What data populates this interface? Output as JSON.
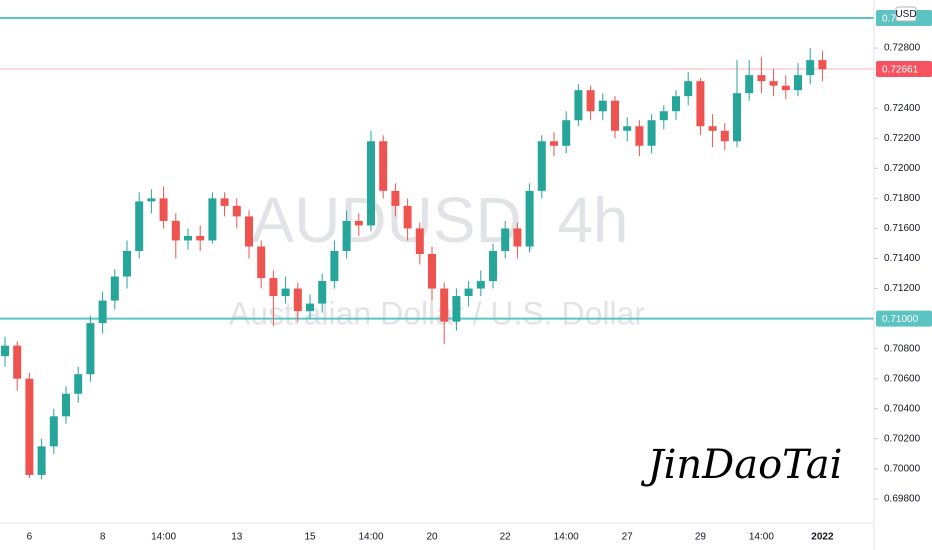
{
  "chart_data": {
    "type": "candlestick",
    "title": "AUDUSD, 4h",
    "subtitle": "Australian Dollar / U.S. Dollar",
    "annotation": "JinDaoTai",
    "currency": "USD",
    "up_color": "#26a69a",
    "down_color": "#ef5350",
    "level_color": "#5cc3c3",
    "price_color": "#f7525f",
    "grid": false,
    "ylim": [
      0.6964,
      0.7312
    ],
    "yticks": [
      {
        "value": 0.698,
        "label": "0.69800"
      },
      {
        "value": 0.7,
        "label": "0.70000"
      },
      {
        "value": 0.702,
        "label": "0.70200"
      },
      {
        "value": 0.704,
        "label": "0.70400"
      },
      {
        "value": 0.706,
        "label": "0.70600"
      },
      {
        "value": 0.708,
        "label": "0.70800"
      },
      {
        "value": 0.712,
        "label": "0.71200"
      },
      {
        "value": 0.714,
        "label": "0.71400"
      },
      {
        "value": 0.716,
        "label": "0.71600"
      },
      {
        "value": 0.718,
        "label": "0.71800"
      },
      {
        "value": 0.72,
        "label": "0.72000"
      },
      {
        "value": 0.722,
        "label": "0.72200"
      },
      {
        "value": 0.724,
        "label": "0.72400"
      },
      {
        "value": 0.728,
        "label": "0.72800"
      }
    ],
    "levels": [
      {
        "value": 0.73,
        "label": "0.7"
      },
      {
        "value": 0.71,
        "label": "0.71000"
      }
    ],
    "last_price": {
      "value": 0.72661,
      "label": "0.72661"
    },
    "categories": [
      null,
      null,
      "6",
      null,
      null,
      null,
      null,
      null,
      "8",
      null,
      null,
      null,
      null,
      "14:00",
      null,
      null,
      null,
      null,
      null,
      "13",
      null,
      null,
      null,
      null,
      null,
      "15",
      null,
      null,
      null,
      null,
      "14:00",
      null,
      null,
      null,
      null,
      "20",
      null,
      null,
      null,
      null,
      null,
      "22",
      null,
      null,
      null,
      null,
      "14:00",
      null,
      null,
      null,
      null,
      "27",
      null,
      null,
      null,
      null,
      null,
      "29",
      null,
      null,
      null,
      null,
      "14:00",
      null,
      null,
      null,
      null,
      "2022"
    ],
    "ohlc": [
      [
        0.7075,
        0.7088,
        0.7068,
        0.7082
      ],
      [
        0.7082,
        0.7085,
        0.7052,
        0.706
      ],
      [
        0.706,
        0.7064,
        0.6994,
        0.6996
      ],
      [
        0.6996,
        0.702,
        0.6993,
        0.7015
      ],
      [
        0.7015,
        0.704,
        0.701,
        0.7035
      ],
      [
        0.7035,
        0.7055,
        0.703,
        0.705
      ],
      [
        0.705,
        0.7068,
        0.7044,
        0.7063
      ],
      [
        0.7063,
        0.7102,
        0.7058,
        0.7097
      ],
      [
        0.7097,
        0.7118,
        0.709,
        0.7112
      ],
      [
        0.7112,
        0.7133,
        0.7106,
        0.7128
      ],
      [
        0.7128,
        0.7152,
        0.712,
        0.7145
      ],
      [
        0.7145,
        0.7184,
        0.714,
        0.7178
      ],
      [
        0.7178,
        0.7186,
        0.717,
        0.718
      ],
      [
        0.718,
        0.7188,
        0.716,
        0.7165
      ],
      [
        0.7165,
        0.717,
        0.714,
        0.7152
      ],
      [
        0.7152,
        0.716,
        0.7146,
        0.7155
      ],
      [
        0.7155,
        0.7162,
        0.7145,
        0.7152
      ],
      [
        0.7152,
        0.7184,
        0.715,
        0.718
      ],
      [
        0.718,
        0.7184,
        0.7168,
        0.7175
      ],
      [
        0.7175,
        0.718,
        0.716,
        0.7168
      ],
      [
        0.7168,
        0.7172,
        0.714,
        0.7148
      ],
      [
        0.7148,
        0.7152,
        0.712,
        0.7127
      ],
      [
        0.7127,
        0.7132,
        0.7095,
        0.7115
      ],
      [
        0.7115,
        0.7128,
        0.711,
        0.712
      ],
      [
        0.712,
        0.7124,
        0.7098,
        0.7105
      ],
      [
        0.7105,
        0.7116,
        0.71,
        0.711
      ],
      [
        0.711,
        0.713,
        0.7104,
        0.7125
      ],
      [
        0.7125,
        0.7152,
        0.712,
        0.7145
      ],
      [
        0.7145,
        0.7172,
        0.714,
        0.7165
      ],
      [
        0.7165,
        0.717,
        0.7155,
        0.7162
      ],
      [
        0.7162,
        0.7225,
        0.7158,
        0.7218
      ],
      [
        0.7218,
        0.7222,
        0.718,
        0.7185
      ],
      [
        0.7185,
        0.719,
        0.7168,
        0.7175
      ],
      [
        0.7175,
        0.718,
        0.7152,
        0.716
      ],
      [
        0.716,
        0.7164,
        0.7136,
        0.7143
      ],
      [
        0.7143,
        0.7148,
        0.7112,
        0.712
      ],
      [
        0.712,
        0.7124,
        0.7083,
        0.7098
      ],
      [
        0.7098,
        0.712,
        0.7092,
        0.7115
      ],
      [
        0.7115,
        0.7125,
        0.7108,
        0.712
      ],
      [
        0.712,
        0.7132,
        0.7115,
        0.7125
      ],
      [
        0.7125,
        0.715,
        0.712,
        0.7145
      ],
      [
        0.7145,
        0.7165,
        0.714,
        0.716
      ],
      [
        0.716,
        0.7164,
        0.714,
        0.7148
      ],
      [
        0.7148,
        0.719,
        0.7144,
        0.7185
      ],
      [
        0.7185,
        0.7222,
        0.718,
        0.7218
      ],
      [
        0.7218,
        0.7224,
        0.7208,
        0.7215
      ],
      [
        0.7215,
        0.7238,
        0.721,
        0.7232
      ],
      [
        0.7232,
        0.7256,
        0.7228,
        0.7252
      ],
      [
        0.7252,
        0.7255,
        0.7232,
        0.7238
      ],
      [
        0.7238,
        0.725,
        0.7232,
        0.7245
      ],
      [
        0.7245,
        0.7248,
        0.722,
        0.7225
      ],
      [
        0.7225,
        0.7234,
        0.7218,
        0.7228
      ],
      [
        0.7228,
        0.7232,
        0.7208,
        0.7215
      ],
      [
        0.7215,
        0.7236,
        0.721,
        0.7232
      ],
      [
        0.7232,
        0.7242,
        0.7226,
        0.7238
      ],
      [
        0.7238,
        0.7252,
        0.7232,
        0.7248
      ],
      [
        0.7248,
        0.7264,
        0.7242,
        0.7258
      ],
      [
        0.7258,
        0.726,
        0.7222,
        0.7228
      ],
      [
        0.7228,
        0.7236,
        0.7214,
        0.7225
      ],
      [
        0.7225,
        0.723,
        0.7212,
        0.7218
      ],
      [
        0.7218,
        0.7272,
        0.7214,
        0.725
      ],
      [
        0.725,
        0.7272,
        0.7245,
        0.7262
      ],
      [
        0.7262,
        0.7274,
        0.725,
        0.7258
      ],
      [
        0.7258,
        0.7266,
        0.7248,
        0.7255
      ],
      [
        0.7255,
        0.7262,
        0.7246,
        0.7252
      ],
      [
        0.7252,
        0.727,
        0.7248,
        0.7262
      ],
      [
        0.7262,
        0.728,
        0.7256,
        0.7272
      ],
      [
        0.7272,
        0.7278,
        0.7258,
        0.7266
      ]
    ]
  }
}
